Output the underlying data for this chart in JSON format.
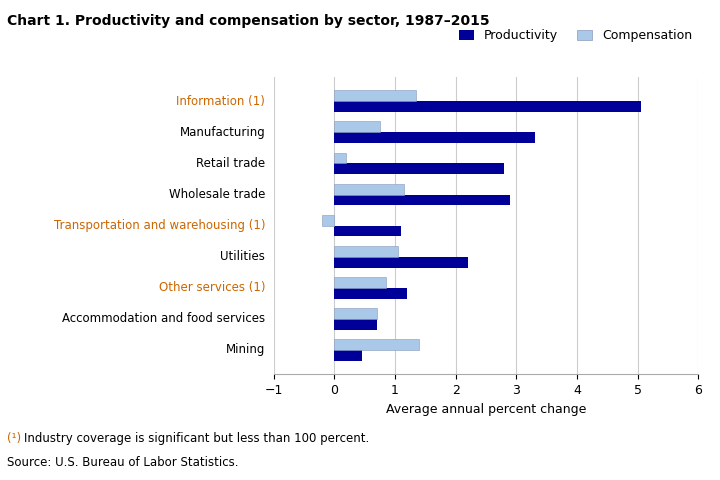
{
  "title": "Chart 1. Productivity and compensation by sector, 1987–2015",
  "categories": [
    "Information (1)",
    "Manufacturing",
    "Retail trade",
    "Wholesale trade",
    "Transportation and warehousing (1)",
    "Utilities",
    "Other services (1)",
    "Accommodation and food services",
    "Mining"
  ],
  "colored_labels": [
    "Information (1)",
    "Transportation and warehousing (1)",
    "Other services (1)"
  ],
  "label_color_special": "#cc6600",
  "label_color_normal": "#000000",
  "productivity": [
    5.05,
    3.3,
    2.8,
    2.9,
    1.1,
    2.2,
    1.2,
    0.7,
    0.45
  ],
  "compensation": [
    1.35,
    0.75,
    0.2,
    1.15,
    -0.2,
    1.05,
    0.85,
    0.7,
    1.4
  ],
  "productivity_color": "#000099",
  "compensation_color": "#aac8e8",
  "bar_height": 0.35,
  "xlabel": "Average annual percent change",
  "xlim": [
    -1,
    6
  ],
  "xticks": [
    -1,
    0,
    1,
    2,
    3,
    4,
    5,
    6
  ],
  "legend_labels": [
    "Productivity",
    "Compensation"
  ],
  "footnote_prefix": "(¹) ",
  "footnote_rest": "Industry coverage is significant but less than 100 percent.",
  "footnote_line2": "Source: U.S. Bureau of Labor Statistics.",
  "footnote_color_special": "#cc6600",
  "background_color": "#ffffff",
  "grid_color": "#cccccc"
}
